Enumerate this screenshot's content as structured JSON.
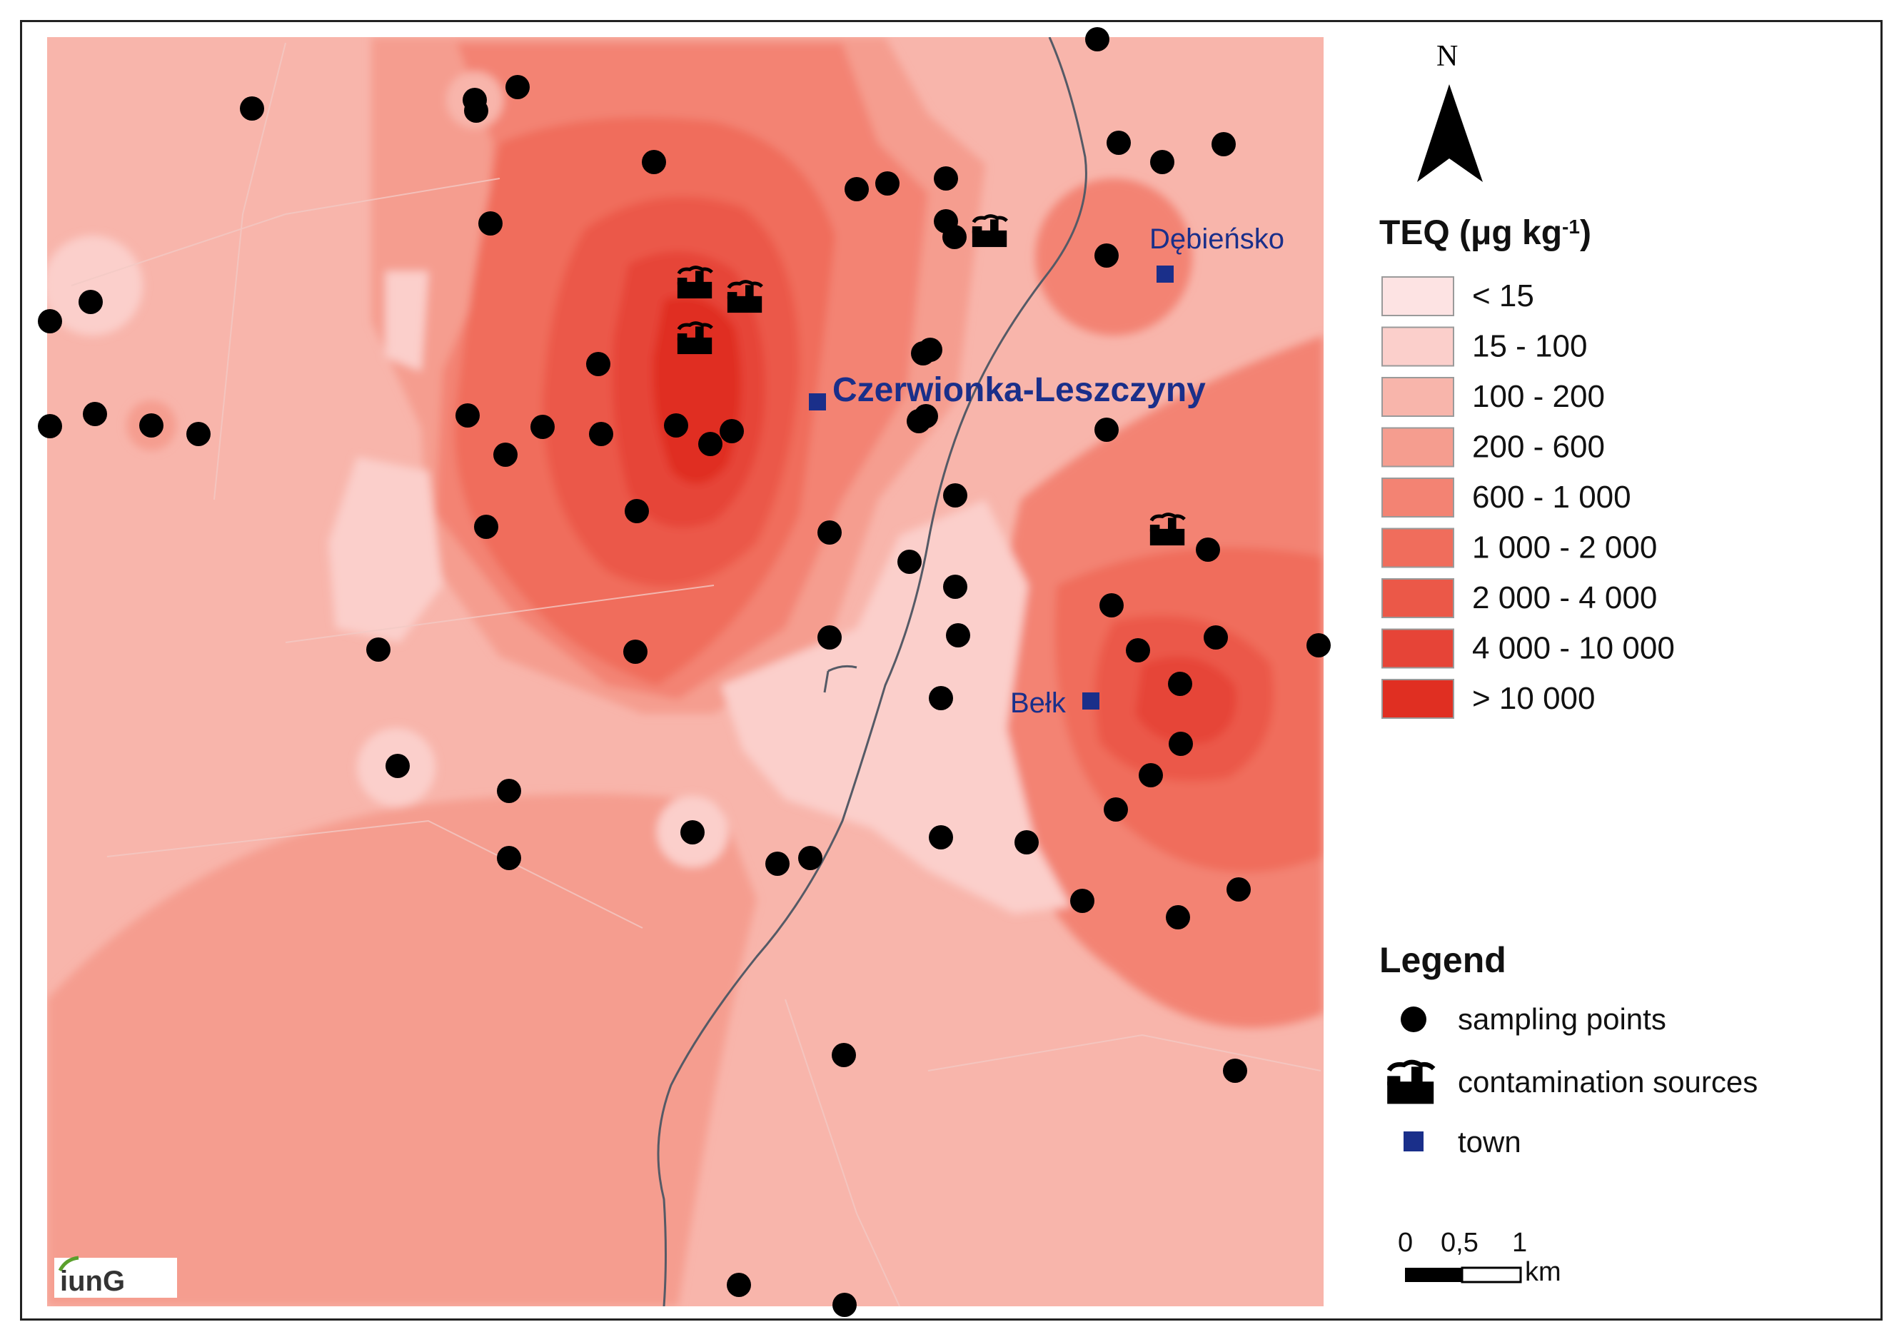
{
  "towns": [
    {
      "name": "Dębieńsko",
      "size": "small"
    },
    {
      "name": "Czerwionka-Leszczyny",
      "size": "large"
    },
    {
      "name": "Bełk",
      "size": "small"
    }
  ],
  "north_arrow": {
    "label": "N"
  },
  "teq_legend": {
    "title_main": "TEQ (μg kg",
    "title_sup": "-1",
    "title_end": ")",
    "classes": [
      {
        "label": "< 15",
        "color": "#fde3e3"
      },
      {
        "label": "15 - 100",
        "color": "#fbcfcb"
      },
      {
        "label": "100 - 200",
        "color": "#f8b5ab"
      },
      {
        "label": "200 - 600",
        "color": "#f59d8f"
      },
      {
        "label": "600 - 1 000",
        "color": "#f38373"
      },
      {
        "label": "1 000 - 2 000",
        "color": "#f06d5c"
      },
      {
        "label": "2 000 - 4 000",
        "color": "#eb5848"
      },
      {
        "label": "4 000 - 10 000",
        "color": "#e64437"
      },
      {
        "label": "> 10 000",
        "color": "#e02f22"
      }
    ]
  },
  "legend": {
    "title": "Legend",
    "items": [
      {
        "symbol": "circle",
        "label": "sampling points"
      },
      {
        "symbol": "factory-icon",
        "label": "contamination sources"
      },
      {
        "symbol": "square",
        "label": "town"
      }
    ]
  },
  "scale_bar": {
    "ticks": [
      "0",
      "0,5",
      "1"
    ],
    "unit": "km"
  },
  "logo": {
    "text": "iunG"
  },
  "colors": {
    "town": "#1a2f8a",
    "point": "#000000",
    "railway": "#555a66"
  }
}
